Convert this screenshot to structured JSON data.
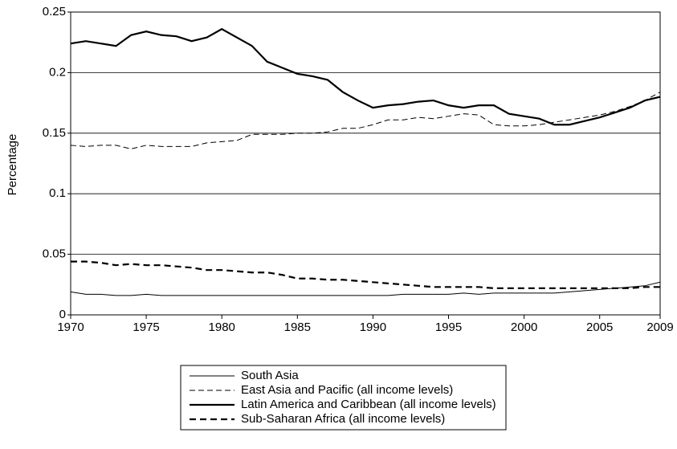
{
  "chart_data": {
    "type": "line",
    "ylabel": "Percentage",
    "x": [
      1970,
      1971,
      1972,
      1973,
      1974,
      1975,
      1976,
      1977,
      1978,
      1979,
      1980,
      1981,
      1982,
      1983,
      1984,
      1985,
      1986,
      1987,
      1988,
      1989,
      1990,
      1991,
      1992,
      1993,
      1994,
      1995,
      1996,
      1997,
      1998,
      1999,
      2000,
      2001,
      2002,
      2003,
      2004,
      2005,
      2006,
      2007,
      2008,
      2009
    ],
    "series": [
      {
        "name": "South Asia",
        "color": "#000000",
        "line_style": "solid",
        "line_width": 1,
        "values": [
          0.019,
          0.017,
          0.017,
          0.016,
          0.016,
          0.017,
          0.016,
          0.016,
          0.016,
          0.016,
          0.016,
          0.016,
          0.016,
          0.016,
          0.016,
          0.016,
          0.016,
          0.016,
          0.016,
          0.016,
          0.016,
          0.016,
          0.017,
          0.017,
          0.017,
          0.017,
          0.018,
          0.017,
          0.018,
          0.018,
          0.018,
          0.018,
          0.018,
          0.019,
          0.02,
          0.021,
          0.022,
          0.023,
          0.024,
          0.027
        ]
      },
      {
        "name": "East Asia and Pacific (all income levels)",
        "color": "#000000",
        "line_style": "dashed",
        "line_width": 1,
        "values": [
          0.14,
          0.139,
          0.14,
          0.14,
          0.137,
          0.14,
          0.139,
          0.139,
          0.139,
          0.142,
          0.143,
          0.144,
          0.149,
          0.149,
          0.149,
          0.15,
          0.15,
          0.151,
          0.154,
          0.154,
          0.157,
          0.161,
          0.161,
          0.163,
          0.162,
          0.164,
          0.166,
          0.165,
          0.157,
          0.156,
          0.156,
          0.157,
          0.159,
          0.161,
          0.163,
          0.165,
          0.168,
          0.172,
          0.177,
          0.184
        ]
      },
      {
        "name": "Latin America and Caribbean (all income levels)",
        "color": "#000000",
        "line_style": "solid",
        "line_width": 2.2,
        "values": [
          0.224,
          0.226,
          0.224,
          0.222,
          0.231,
          0.234,
          0.231,
          0.23,
          0.226,
          0.229,
          0.236,
          0.229,
          0.222,
          0.209,
          0.204,
          0.199,
          0.197,
          0.194,
          0.184,
          0.177,
          0.171,
          0.173,
          0.174,
          0.176,
          0.177,
          0.173,
          0.171,
          0.173,
          0.173,
          0.166,
          0.164,
          0.162,
          0.157,
          0.157,
          0.16,
          0.163,
          0.167,
          0.171,
          0.177,
          0.18
        ]
      },
      {
        "name": "Sub-Saharan Africa (all income levels)",
        "color": "#000000",
        "line_style": "dashed",
        "line_width": 2.2,
        "values": [
          0.044,
          0.044,
          0.043,
          0.041,
          0.042,
          0.041,
          0.041,
          0.04,
          0.039,
          0.037,
          0.037,
          0.036,
          0.035,
          0.035,
          0.033,
          0.03,
          0.03,
          0.029,
          0.029,
          0.028,
          0.027,
          0.026,
          0.025,
          0.024,
          0.023,
          0.023,
          0.023,
          0.023,
          0.022,
          0.022,
          0.022,
          0.022,
          0.022,
          0.022,
          0.022,
          0.022,
          0.022,
          0.022,
          0.023,
          0.023
        ]
      }
    ],
    "xlim": [
      1970,
      2009
    ],
    "xticks": [
      1970,
      1975,
      1980,
      1985,
      1990,
      1995,
      2000,
      2005,
      2009
    ],
    "ylim": [
      0,
      0.25
    ],
    "yticks": [
      0,
      0.05,
      0.1,
      0.15,
      0.2,
      0.25
    ],
    "grid": true,
    "legend": "bottom"
  }
}
